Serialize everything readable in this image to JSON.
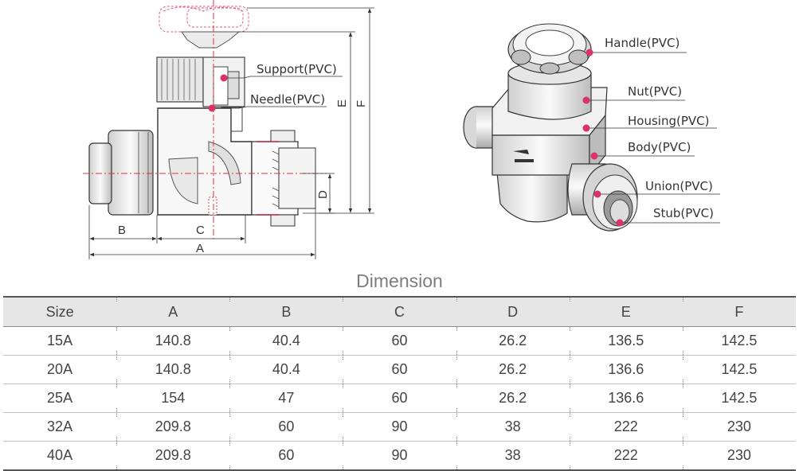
{
  "callouts": {
    "handle": "Handle(PVC)",
    "nut": "Nut(PVC)",
    "housing": "Housing(PVC)",
    "body": "Body(PVC)",
    "union": "Union(PVC)",
    "stub": "Stub(PVC)",
    "support": "Support(PVC)",
    "needle": "Needle(PVC)"
  },
  "dimension_marks": {
    "a": "A",
    "b": "B",
    "c": "C",
    "d": "D",
    "e": "E",
    "f": "F"
  },
  "colors": {
    "callout_dot": "#d9336a",
    "centerline": "#e0303c",
    "table_header_bg": "#e6e6e6"
  },
  "table": {
    "title": "Dimension",
    "headers": [
      "Size",
      "A",
      "B",
      "C",
      "D",
      "E",
      "F"
    ],
    "rows": [
      [
        "15A",
        "140.8",
        "40.4",
        "60",
        "26.2",
        "136.5",
        "142.5"
      ],
      [
        "20A",
        "140.8",
        "40.4",
        "60",
        "26.2",
        "136.6",
        "142.5"
      ],
      [
        "25A",
        "154",
        "47",
        "60",
        "26.2",
        "136.6",
        "142.5"
      ],
      [
        "32A",
        "209.8",
        "60",
        "90",
        "38",
        "222",
        "230"
      ],
      [
        "40A",
        "209.8",
        "60",
        "90",
        "38",
        "222",
        "230"
      ]
    ]
  }
}
